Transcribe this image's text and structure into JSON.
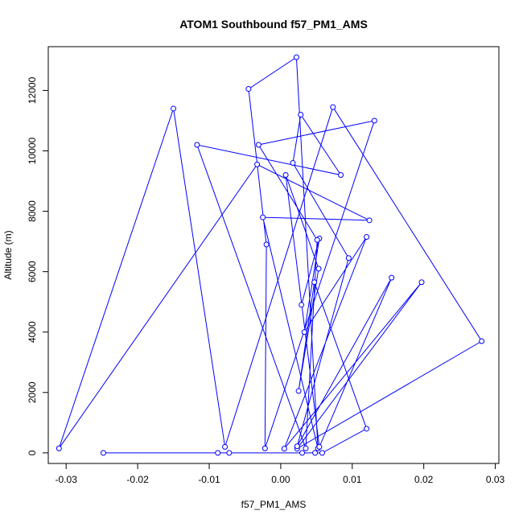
{
  "chart_data": {
    "type": "line",
    "title": "ATOM1 Southbound f57_PM1_AMS",
    "xlabel": "f57_PM1_AMS",
    "ylabel": "Altitude (m)",
    "xlim": [
      -0.0325,
      0.0305
    ],
    "ylim": [
      -350,
      13450
    ],
    "x_ticks": [
      -0.03,
      -0.02,
      -0.01,
      0.0,
      0.01,
      0.02,
      0.03
    ],
    "x_tick_labels": [
      "-0.03",
      "-0.02",
      "-0.01",
      "0.00",
      "0.01",
      "0.02",
      "0.03"
    ],
    "y_ticks": [
      0,
      2000,
      4000,
      6000,
      8000,
      10000,
      12000
    ],
    "y_tick_labels": [
      "0",
      "2000",
      "4000",
      "6000",
      "8000",
      "10000",
      "12000"
    ],
    "grid": false,
    "series": [
      {
        "color": "#0000FF",
        "marker": "open-circle",
        "x": [
          0.0029,
          0.0054,
          0.0033,
          0.012,
          0.0005,
          0.0197,
          0.0023,
          0.0281,
          0.0073,
          -0.0078,
          -0.015,
          -0.031,
          -0.0033,
          0.0124,
          -0.0025,
          0.0052,
          0.0022,
          -0.0045,
          -0.002,
          -0.0022,
          0.0131,
          -0.0031,
          0.0051,
          0.0035,
          -0.0117,
          0.0084,
          0.0028,
          0.0017,
          0.0095,
          0.0023,
          0.0155,
          0.0054,
          0.0007,
          0.0053,
          0.0025,
          0.0047,
          0.012,
          0.0058,
          0.0048,
          -0.0088,
          -0.0072,
          -0.0248,
          0.003
        ],
        "y": [
          4900,
          7100,
          4000,
          7150,
          140,
          5650,
          140,
          3700,
          11450,
          200,
          11400,
          150,
          9550,
          7700,
          7800,
          150,
          13100,
          12050,
          6900,
          150,
          11000,
          10200,
          7050,
          150,
          10200,
          9200,
          11200,
          9600,
          6450,
          220,
          5800,
          200,
          9200,
          6100,
          2050,
          5650,
          800,
          0,
          0,
          0,
          0,
          0,
          0
        ]
      }
    ]
  }
}
